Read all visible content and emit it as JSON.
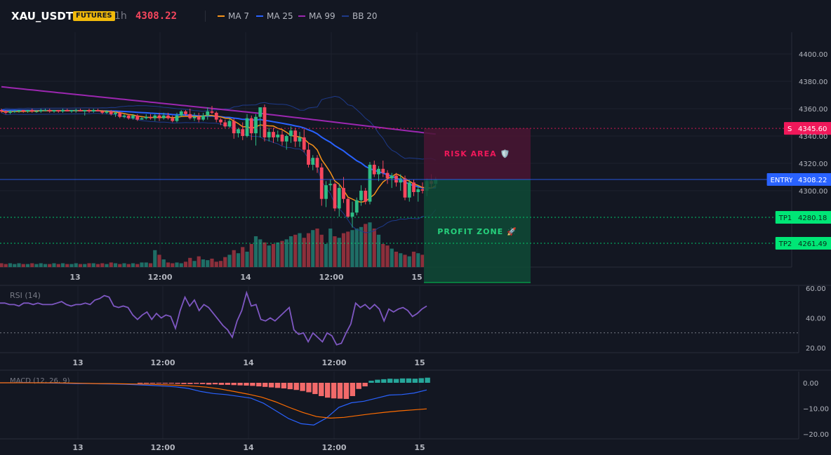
{
  "header": {
    "symbol": "XAU_USDT",
    "badge": "FUTURES",
    "interval": "1h",
    "last_price": "4308.22",
    "legend": [
      {
        "label": "MA 7",
        "color": "#f7931a"
      },
      {
        "label": "MA 25",
        "color": "#2962ff"
      },
      {
        "label": "MA 99",
        "color": "#9c27b0"
      },
      {
        "label": "BB 20",
        "color": "#1e3a8a"
      }
    ]
  },
  "colors": {
    "background": "#131722",
    "up": "#26a69a",
    "down": "#ef5350",
    "candle_up": "#2ebd85",
    "candle_down": "#f6465d",
    "rsi": "#7e57c2",
    "macd": "#2962ff",
    "signal": "#ff6d00",
    "sl": "#f0185a",
    "entry": "#2962ff",
    "tp": "#00e676"
  },
  "chart_data": [
    {
      "type": "candlestick",
      "panel": "price",
      "ylim": [
        4290,
        4410
      ],
      "y_ticks": [
        "4300.00",
        "4320.00",
        "4340.00",
        "4360.00",
        "4380.00",
        "4400.00"
      ],
      "x_ticks": [
        "13",
        "12:00",
        "14",
        "12:00",
        "15"
      ],
      "candles": [
        [
          4359,
          4360,
          4357,
          4358
        ],
        [
          4358,
          4359,
          4356,
          4357
        ],
        [
          4357,
          4359,
          4356,
          4358
        ],
        [
          4358,
          4359,
          4357,
          4358
        ],
        [
          4358,
          4359,
          4357,
          4359
        ],
        [
          4359,
          4359,
          4357,
          4358
        ],
        [
          4358,
          4359,
          4357,
          4359
        ],
        [
          4359,
          4360,
          4357,
          4358
        ],
        [
          4358,
          4359,
          4357,
          4358
        ],
        [
          4358,
          4360,
          4357,
          4359
        ],
        [
          4359,
          4360,
          4358,
          4359
        ],
        [
          4359,
          4360,
          4357,
          4358
        ],
        [
          4358,
          4359,
          4357,
          4359
        ],
        [
          4359,
          4359,
          4357,
          4358
        ],
        [
          4358,
          4360,
          4357,
          4359
        ],
        [
          4359,
          4360,
          4358,
          4358
        ],
        [
          4358,
          4359,
          4357,
          4359
        ],
        [
          4359,
          4360,
          4357,
          4359
        ],
        [
          4359,
          4360,
          4358,
          4358
        ],
        [
          4358,
          4359,
          4355,
          4359
        ],
        [
          4359,
          4360,
          4357,
          4358
        ],
        [
          4358,
          4360,
          4357,
          4359
        ],
        [
          4359,
          4360,
          4358,
          4358
        ],
        [
          4358,
          4359,
          4356,
          4357
        ],
        [
          4357,
          4359,
          4356,
          4358
        ],
        [
          4358,
          4359,
          4355,
          4356
        ],
        [
          4356,
          4358,
          4354,
          4357
        ],
        [
          4357,
          4358,
          4353,
          4354
        ],
        [
          4354,
          4356,
          4353,
          4355
        ],
        [
          4355,
          4356,
          4352,
          4353
        ],
        [
          4353,
          4356,
          4352,
          4355
        ],
        [
          4355,
          4356,
          4351,
          4352
        ],
        [
          4352,
          4354,
          4352,
          4353
        ],
        [
          4353,
          4356,
          4352,
          4354
        ],
        [
          4354,
          4356,
          4352,
          4353
        ],
        [
          4353,
          4356,
          4351,
          4355
        ],
        [
          4355,
          4357,
          4351,
          4353
        ],
        [
          4353,
          4357,
          4352,
          4355
        ],
        [
          4355,
          4357,
          4352,
          4353
        ],
        [
          4353,
          4355,
          4350,
          4351
        ],
        [
          4351,
          4357,
          4350,
          4355
        ],
        [
          4355,
          4359,
          4354,
          4358
        ],
        [
          4358,
          4359,
          4355,
          4356
        ],
        [
          4356,
          4360,
          4352,
          4353
        ],
        [
          4353,
          4357,
          4351,
          4354
        ],
        [
          4354,
          4357,
          4350,
          4352
        ],
        [
          4352,
          4357,
          4351,
          4355
        ],
        [
          4355,
          4361,
          4352,
          4358
        ],
        [
          4358,
          4362,
          4356,
          4357
        ],
        [
          4357,
          4358,
          4350,
          4352
        ],
        [
          4352,
          4353,
          4348,
          4350
        ],
        [
          4350,
          4352,
          4346,
          4347
        ],
        [
          4347,
          4353,
          4346,
          4351
        ],
        [
          4351,
          4353,
          4338,
          4342
        ],
        [
          4342,
          4346,
          4339,
          4345
        ],
        [
          4345,
          4350,
          4337,
          4340
        ],
        [
          4340,
          4356,
          4339,
          4353
        ],
        [
          4353,
          4355,
          4337,
          4342
        ],
        [
          4342,
          4356,
          4333,
          4354
        ],
        [
          4354,
          4361,
          4339,
          4361
        ],
        [
          4361,
          4363,
          4336,
          4339
        ],
        [
          4339,
          4346,
          4336,
          4343
        ],
        [
          4343,
          4346,
          4335,
          4339
        ],
        [
          4339,
          4344,
          4336,
          4341
        ],
        [
          4341,
          4344,
          4333,
          4336
        ],
        [
          4336,
          4341,
          4330,
          4340
        ],
        [
          4340,
          4347,
          4335,
          4344
        ],
        [
          4344,
          4346,
          4332,
          4336
        ],
        [
          4336,
          4343,
          4332,
          4339
        ],
        [
          4339,
          4345,
          4328,
          4330
        ],
        [
          4330,
          4335,
          4317,
          4319
        ],
        [
          4319,
          4326,
          4315,
          4324
        ],
        [
          4324,
          4326,
          4313,
          4317
        ],
        [
          4317,
          4320,
          4289,
          4294
        ],
        [
          4294,
          4307,
          4288,
          4304
        ],
        [
          4304,
          4308,
          4300,
          4305
        ],
        [
          4305,
          4306,
          4285,
          4287
        ],
        [
          4287,
          4305,
          4281,
          4302
        ],
        [
          4302,
          4310,
          4291,
          4294
        ],
        [
          4294,
          4295,
          4280,
          4281
        ],
        [
          4281,
          4292,
          4273,
          4284
        ],
        [
          4284,
          4295,
          4282,
          4293
        ],
        [
          4293,
          4304,
          4289,
          4300
        ],
        [
          4300,
          4302,
          4290,
          4292
        ],
        [
          4292,
          4321,
          4290,
          4319
        ],
        [
          4319,
          4322,
          4310,
          4312
        ],
        [
          4312,
          4318,
          4307,
          4316
        ],
        [
          4316,
          4322,
          4310,
          4313
        ],
        [
          4313,
          4315,
          4305,
          4309
        ],
        [
          4309,
          4313,
          4302,
          4311
        ],
        [
          4311,
          4313,
          4303,
          4306
        ],
        [
          4306,
          4312,
          4300,
          4309
        ],
        [
          4309,
          4311,
          4293,
          4295
        ],
        [
          4295,
          4308,
          4292,
          4306
        ],
        [
          4306,
          4308,
          4296,
          4299
        ],
        [
          4299,
          4304,
          4292,
          4301
        ],
        [
          4301,
          4306,
          4298,
          4300
        ],
        [
          4300,
          4309,
          4296,
          4307
        ],
        [
          4307,
          4312,
          4302,
          4305
        ],
        [
          4305,
          4310,
          4302,
          4308
        ]
      ],
      "volume": [
        5,
        4,
        5,
        4,
        5,
        4,
        4,
        5,
        4,
        5,
        4,
        4,
        5,
        4,
        5,
        4,
        4,
        5,
        4,
        4,
        5,
        5,
        4,
        5,
        4,
        6,
        5,
        4,
        5,
        4,
        5,
        4,
        6,
        6,
        5,
        22,
        16,
        10,
        6,
        5,
        6,
        5,
        7,
        12,
        8,
        14,
        10,
        9,
        11,
        7,
        8,
        13,
        16,
        22,
        18,
        26,
        20,
        30,
        40,
        36,
        32,
        28,
        30,
        32,
        34,
        36,
        40,
        42,
        44,
        38,
        44,
        48,
        50,
        42,
        30,
        50,
        40,
        38,
        44,
        46,
        48,
        50,
        52,
        56,
        58,
        50,
        42,
        30,
        28,
        24,
        20,
        18,
        16,
        14,
        20,
        18,
        16
      ],
      "overlays": {
        "levels": [
          {
            "name": "SL",
            "value": 4345.6,
            "label": "SL: 4345.6",
            "price_label": "4345.60"
          },
          {
            "name": "ENTRY",
            "value": 4308.22,
            "label": "ENTRY: 4308.22",
            "price_label": "4308.22"
          },
          {
            "name": "TP1",
            "value": 4280.18,
            "label": "TP1: 4280.18",
            "price_label": "4280.18"
          },
          {
            "name": "TP2",
            "value": 4261.49,
            "label": "TP2: 4261.49",
            "price_label": "4261.49"
          }
        ],
        "risk_label": "RISK AREA 🛡️",
        "profit_label": "PROFIT ZONE 🚀"
      }
    },
    {
      "type": "line",
      "panel": "rsi",
      "title": "RSI (14)",
      "ylim": [
        15,
        60
      ],
      "y_ticks": [
        "60.00",
        "40.00",
        "20.00"
      ],
      "reference_level": 30,
      "x_ticks": [
        "13",
        "12:00",
        "14",
        "12:00",
        "15"
      ],
      "values": [
        50,
        50,
        49,
        49,
        48,
        50,
        50,
        49,
        50,
        49,
        49,
        49,
        50,
        51,
        49,
        48,
        49,
        49,
        50,
        49,
        52,
        53,
        55,
        54,
        48,
        47,
        48,
        47,
        42,
        39,
        42,
        44,
        39,
        43,
        40,
        42,
        41,
        33,
        45,
        54,
        48,
        52,
        45,
        49,
        47,
        43,
        39,
        35,
        32,
        27,
        38,
        45,
        57,
        48,
        49,
        39,
        38,
        40,
        38,
        41,
        44,
        47,
        32,
        29,
        30,
        24,
        30,
        27,
        24,
        30,
        28,
        22,
        23,
        30,
        36,
        50,
        47,
        49,
        46,
        49,
        46,
        38,
        46,
        44,
        46,
        47,
        45,
        41,
        43,
        46,
        48
      ]
    },
    {
      "type": "bar",
      "panel": "macd",
      "title": "MACD (12, 26, 9)",
      "ylim": [
        -22,
        4
      ],
      "y_ticks": [
        "0.00",
        "−10.00",
        "−20.00"
      ],
      "x_ticks": [
        "13",
        "12:00",
        "14",
        "12:00",
        "15"
      ],
      "histogram": [
        -0.2,
        -0.2,
        -0.1,
        -0.2,
        -0.3,
        -0.3,
        -0.4,
        -0.5,
        -0.5,
        -0.4,
        -0.5,
        -0.7,
        -0.6,
        -0.8,
        -0.8,
        -0.9,
        -1,
        -1.1,
        -1.2,
        -1.4,
        -1.6,
        -1.8,
        -2,
        -2.2,
        -2.5,
        -2.8,
        -3.2,
        -3.7,
        -4.4,
        -5.2,
        -5.8,
        -6.1,
        -6.2,
        -6.3,
        -5.2,
        -2.4,
        -1.4,
        0.8,
        1.2,
        1.4,
        1.6,
        1.5,
        1.7,
        1.7,
        1.6,
        1.8,
        2
      ],
      "macd": [
        0,
        0,
        0.1,
        0,
        -0.1,
        -0.2,
        -0.3,
        -0.3,
        -0.4,
        -0.5,
        -0.6,
        -0.8,
        -1,
        -1.3,
        -1.6,
        -2.2,
        -3.4,
        -4.2,
        -4.6,
        -5.3,
        -6,
        -8,
        -11,
        -14,
        -16,
        -16.5,
        -13.8,
        -9.6,
        -7.8,
        -7.2,
        -6,
        -4.8,
        -4.6,
        -4,
        -2.8
      ],
      "signal": [
        0,
        0,
        0,
        0,
        0,
        -0.1,
        -0.2,
        -0.3,
        -0.3,
        -0.4,
        -0.5,
        -0.6,
        -0.8,
        -1,
        -1.3,
        -1.7,
        -2.4,
        -3.4,
        -4.4,
        -5.6,
        -7.4,
        -9.6,
        -11.6,
        -13.2,
        -13.8,
        -13.5,
        -12.8,
        -12.1,
        -11.5,
        -11,
        -10.6,
        -10.2
      ]
    }
  ]
}
